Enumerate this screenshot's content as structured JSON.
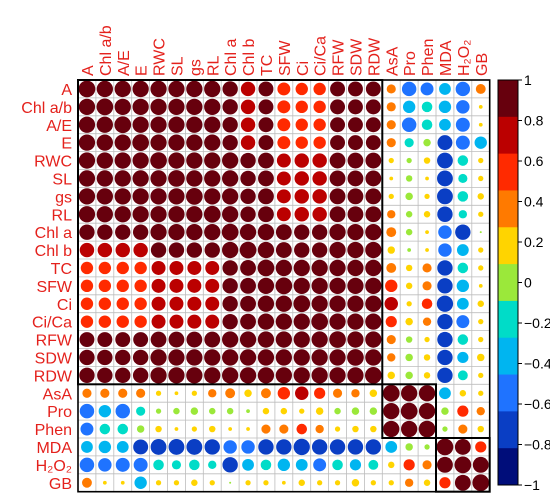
{
  "chart_data": {
    "type": "heatmap",
    "variables": [
      "A",
      "Chl a/b",
      "A/E",
      "E",
      "RWC",
      "SL",
      "gs",
      "RL",
      "Chl a",
      "Chl b",
      "TC",
      "SFW",
      "Ci",
      "Ci/Ca",
      "RFW",
      "SDW",
      "RDW",
      "AsA",
      "Pro",
      "Phen",
      "MDA",
      "H₂O₂",
      "GB"
    ],
    "matrix": [
      [
        1.0,
        0.95,
        0.95,
        0.95,
        0.95,
        0.95,
        0.95,
        0.95,
        0.85,
        0.75,
        0.8,
        0.6,
        0.55,
        0.55,
        0.8,
        0.8,
        0.8,
        0.3,
        -0.75,
        -0.6,
        -0.5,
        -0.75,
        0.35
      ],
      [
        0.95,
        1.0,
        0.95,
        0.95,
        0.95,
        0.95,
        0.95,
        0.95,
        0.85,
        0.75,
        0.8,
        0.6,
        0.55,
        0.55,
        0.8,
        0.8,
        0.8,
        0.3,
        -0.55,
        -0.4,
        -0.55,
        -0.65,
        0.05
      ],
      [
        0.95,
        0.95,
        1.0,
        0.95,
        0.95,
        0.95,
        0.95,
        0.95,
        0.85,
        0.75,
        0.8,
        0.6,
        0.55,
        0.55,
        0.8,
        0.8,
        0.8,
        0.3,
        -0.75,
        -0.4,
        -0.5,
        -0.7,
        0.05
      ],
      [
        0.95,
        0.95,
        0.95,
        1.0,
        0.95,
        0.95,
        0.95,
        0.95,
        0.85,
        0.75,
        0.8,
        0.6,
        0.55,
        0.55,
        0.8,
        0.8,
        0.8,
        0.3,
        -0.3,
        -0.2,
        -0.8,
        -0.7,
        -0.55
      ],
      [
        0.95,
        0.95,
        0.95,
        0.95,
        1.0,
        0.95,
        0.95,
        0.95,
        0.95,
        0.85,
        0.9,
        0.7,
        0.75,
        0.75,
        0.9,
        0.9,
        0.9,
        0.1,
        -0.1,
        0.15,
        -0.9,
        -0.4,
        0.1
      ],
      [
        0.95,
        0.95,
        0.95,
        0.95,
        0.95,
        1.0,
        0.95,
        0.95,
        0.95,
        0.85,
        0.9,
        0.7,
        0.75,
        0.75,
        0.9,
        0.9,
        0.9,
        0.05,
        -0.15,
        0.05,
        -0.9,
        -0.3,
        0.1
      ],
      [
        0.95,
        0.95,
        0.95,
        0.95,
        0.95,
        0.95,
        1.0,
        0.95,
        0.95,
        0.85,
        0.9,
        0.7,
        0.75,
        0.75,
        0.9,
        0.9,
        0.9,
        0.1,
        -0.2,
        0.1,
        -0.9,
        -0.4,
        0.15
      ],
      [
        0.95,
        0.95,
        0.95,
        0.95,
        0.95,
        0.95,
        0.95,
        1.0,
        0.95,
        0.85,
        0.9,
        0.7,
        0.75,
        0.75,
        0.9,
        0.9,
        0.9,
        0.25,
        -0.15,
        0.15,
        -0.85,
        -0.25,
        0.1
      ],
      [
        0.85,
        0.85,
        0.85,
        0.85,
        0.95,
        0.95,
        0.95,
        0.95,
        1.0,
        0.95,
        0.95,
        0.9,
        0.85,
        0.85,
        0.95,
        0.95,
        0.95,
        0.35,
        -0.15,
        0.05,
        -0.65,
        -0.85,
        0.0
      ],
      [
        0.75,
        0.75,
        0.75,
        0.75,
        0.85,
        0.85,
        0.85,
        0.85,
        0.95,
        1.0,
        0.95,
        0.9,
        0.85,
        0.85,
        0.95,
        0.95,
        0.95,
        0.2,
        -0.05,
        0.05,
        -0.65,
        -0.5,
        0.1
      ],
      [
        0.55,
        0.55,
        0.55,
        0.55,
        0.7,
        0.7,
        0.7,
        0.7,
        0.85,
        0.9,
        1.0,
        0.95,
        0.95,
        0.95,
        0.95,
        0.95,
        0.95,
        0.35,
        0.15,
        0.3,
        -0.85,
        -0.4,
        0.1
      ],
      [
        0.55,
        0.55,
        0.55,
        0.55,
        0.7,
        0.7,
        0.7,
        0.7,
        0.85,
        0.9,
        0.95,
        1.0,
        0.95,
        0.95,
        0.95,
        0.95,
        0.95,
        0.55,
        0.15,
        0.3,
        -0.85,
        -0.55,
        0.05
      ],
      [
        0.55,
        0.55,
        0.55,
        0.55,
        0.7,
        0.7,
        0.7,
        0.7,
        0.85,
        0.9,
        0.95,
        0.95,
        1.0,
        0.95,
        0.95,
        0.95,
        0.95,
        0.65,
        0.1,
        0.4,
        -0.95,
        -0.5,
        0.15
      ],
      [
        0.55,
        0.55,
        0.55,
        0.55,
        0.7,
        0.7,
        0.7,
        0.7,
        0.85,
        0.9,
        0.95,
        0.95,
        0.95,
        1.0,
        0.95,
        0.95,
        0.95,
        0.45,
        0.2,
        0.25,
        -0.85,
        -0.6,
        0.1
      ],
      [
        0.8,
        0.8,
        0.8,
        0.8,
        0.9,
        0.9,
        0.9,
        0.9,
        0.95,
        0.95,
        0.95,
        0.95,
        0.95,
        0.95,
        1.0,
        0.95,
        0.95,
        0.3,
        -0.15,
        0.1,
        -0.85,
        -0.4,
        0.1
      ],
      [
        0.85,
        0.85,
        0.85,
        0.85,
        0.95,
        0.95,
        0.95,
        0.95,
        0.95,
        0.95,
        0.95,
        0.95,
        0.95,
        0.95,
        0.95,
        1.0,
        0.95,
        0.25,
        -0.2,
        0.15,
        -0.85,
        -0.45,
        0.2
      ],
      [
        0.85,
        0.85,
        0.85,
        0.85,
        0.95,
        0.95,
        0.95,
        0.95,
        0.95,
        0.95,
        0.95,
        0.95,
        0.95,
        0.95,
        0.95,
        0.95,
        1.0,
        0.2,
        -0.2,
        0.15,
        -0.85,
        -0.35,
        0.1
      ],
      [
        0.3,
        0.3,
        0.3,
        0.3,
        0.1,
        0.05,
        0.1,
        0.25,
        0.35,
        0.2,
        0.35,
        0.55,
        0.65,
        0.45,
        0.3,
        0.25,
        0.2,
        1.0,
        0.95,
        0.95,
        -0.5,
        0.15,
        0.1
      ],
      [
        -0.75,
        -0.55,
        -0.75,
        -0.3,
        -0.1,
        -0.15,
        -0.2,
        -0.15,
        -0.15,
        -0.05,
        0.15,
        0.15,
        0.1,
        0.2,
        -0.15,
        -0.2,
        -0.2,
        0.95,
        1.0,
        0.95,
        -0.2,
        0.45,
        0.25
      ],
      [
        -0.6,
        -0.4,
        -0.4,
        -0.2,
        0.15,
        0.05,
        0.1,
        0.15,
        0.05,
        0.05,
        0.3,
        0.3,
        0.4,
        0.25,
        0.1,
        0.15,
        0.15,
        0.95,
        0.95,
        1.0,
        -0.1,
        0.3,
        0.15
      ],
      [
        -0.5,
        -0.55,
        -0.5,
        -0.8,
        -0.9,
        -0.9,
        -0.9,
        -0.85,
        -0.65,
        -0.65,
        -0.85,
        -0.85,
        -0.95,
        -0.85,
        -0.85,
        -0.85,
        -0.85,
        -0.5,
        -0.2,
        -0.1,
        1.0,
        0.9,
        0.45
      ],
      [
        -0.75,
        -0.65,
        -0.7,
        -0.7,
        -0.4,
        -0.3,
        -0.4,
        -0.25,
        -0.85,
        -0.5,
        -0.4,
        -0.55,
        -0.5,
        -0.6,
        -0.4,
        -0.45,
        -0.35,
        0.15,
        0.45,
        0.3,
        0.9,
        1.0,
        0.9
      ],
      [
        0.35,
        0.05,
        0.05,
        -0.55,
        0.1,
        0.1,
        0.15,
        0.1,
        0.0,
        0.1,
        0.1,
        0.05,
        0.15,
        0.1,
        0.1,
        0.2,
        0.1,
        0.1,
        0.25,
        0.15,
        0.45,
        0.9,
        1.0
      ]
    ],
    "clusters": [
      [
        0,
        16
      ],
      [
        17,
        19
      ],
      [
        20,
        22
      ]
    ],
    "colorbar": {
      "range": [
        -1,
        1
      ],
      "ticks": [
        "1",
        "0.8",
        "0.6",
        "0.4",
        "0.2",
        "0",
        "−0.2",
        "−0.4",
        "−0.6",
        "−0.8",
        "−1"
      ],
      "colors": [
        "#67000d",
        "#bb0000",
        "#ff2a00",
        "#ff7a00",
        "#ffd400",
        "#9be83a",
        "#00dcc8",
        "#00b5f0",
        "#1f73ff",
        "#0a3ec4",
        "#000d7a"
      ]
    },
    "label_color": "#e4211c",
    "grid": true,
    "legend": "right"
  }
}
